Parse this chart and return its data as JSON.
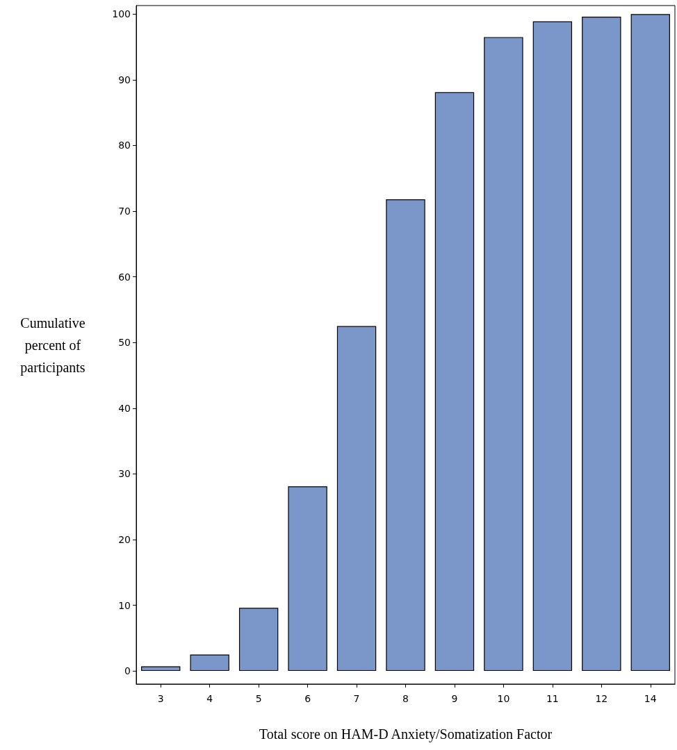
{
  "chart_data": {
    "type": "bar",
    "xlabel": "Total score on HAM-D Anxiety/Somatization Factor",
    "ylabel": "Cumulative\npercent of\nparticipants",
    "categories": [
      "3",
      "4",
      "5",
      "6",
      "7",
      "8",
      "9",
      "10",
      "11",
      "12",
      "14"
    ],
    "values": [
      0.7,
      2.5,
      9.6,
      28.1,
      52.5,
      71.8,
      88.1,
      96.5,
      98.9,
      99.6,
      100
    ],
    "color": "#7b96c9",
    "ylim": [
      -2,
      101.3
    ],
    "yticks": [
      0,
      10,
      20,
      30,
      40,
      50,
      60,
      70,
      80,
      90,
      100
    ],
    "grid": false
  }
}
